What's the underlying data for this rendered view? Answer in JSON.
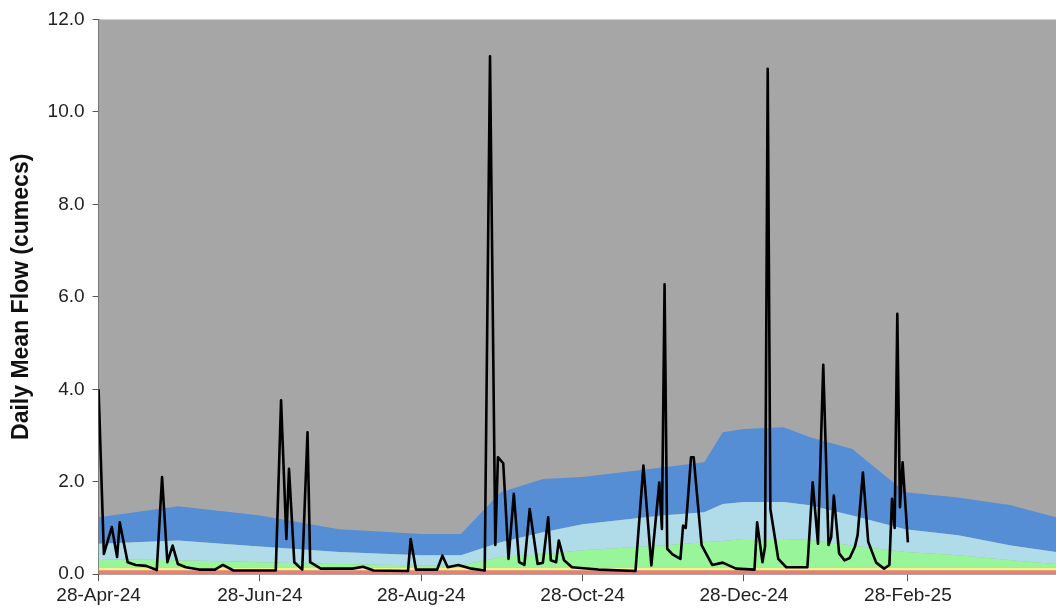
{
  "chart_data": {
    "type": "area",
    "ylabel": "Daily Mean Flow (cumecs)",
    "stacked": true,
    "xlim": [
      "2024-04-28",
      "2025-04-25"
    ],
    "xticks": [
      {
        "value": "2024-04-28",
        "label": "28-Apr-24"
      },
      {
        "value": "2024-06-28",
        "label": "28-Jun-24"
      },
      {
        "value": "2024-08-28",
        "label": "28-Aug-24"
      },
      {
        "value": "2024-10-28",
        "label": "28-Oct-24"
      },
      {
        "value": "2024-12-28",
        "label": "28-Dec-24"
      },
      {
        "value": "2025-02-28",
        "label": "28-Feb-25"
      }
    ],
    "ylim": [
      0,
      12
    ],
    "yticks": [
      {
        "value": 0,
        "label": "0.0"
      },
      {
        "value": 2,
        "label": "2.0"
      },
      {
        "value": 4,
        "label": "4.0"
      },
      {
        "value": 6,
        "label": "6.0"
      },
      {
        "value": 8,
        "label": "8.0"
      },
      {
        "value": 10,
        "label": "10.0"
      },
      {
        "value": 12,
        "label": "12.0"
      }
    ],
    "bands": [
      {
        "axis": "y",
        "from": 0,
        "to": 12,
        "color": "#a6a6a6"
      }
    ],
    "x": [
      "2024-04-28",
      "2024-05-28",
      "2024-06-28",
      "2024-07-28",
      "2024-08-28",
      "2024-09-12",
      "2024-09-27",
      "2024-10-13",
      "2024-10-28",
      "2024-11-27",
      "2024-12-13",
      "2024-12-20",
      "2024-12-28",
      "2025-01-12",
      "2025-01-22",
      "2025-02-07",
      "2025-02-27",
      "2025-03-19",
      "2025-04-08",
      "2025-04-25"
    ],
    "series": [
      {
        "color": "#f07b72",
        "values": [
          0.08,
          0.08,
          0.08,
          0.08,
          0.08,
          0.08,
          0.08,
          0.08,
          0.08,
          0.08,
          0.08,
          0.08,
          0.08,
          0.08,
          0.08,
          0.08,
          0.08,
          0.08,
          0.08,
          0.08
        ]
      },
      {
        "color": "#f8f08a",
        "values": [
          0.06,
          0.06,
          0.06,
          0.06,
          0.06,
          0.06,
          0.06,
          0.06,
          0.06,
          0.06,
          0.06,
          0.06,
          0.06,
          0.06,
          0.06,
          0.06,
          0.06,
          0.06,
          0.06,
          0.06
        ]
      },
      {
        "color": "#99f59a",
        "values": [
          0.19,
          0.16,
          0.12,
          0.08,
          0.05,
          0.05,
          0.23,
          0.29,
          0.38,
          0.48,
          0.55,
          0.58,
          0.62,
          0.62,
          0.6,
          0.48,
          0.34,
          0.27,
          0.16,
          0.08
        ]
      },
      {
        "color": "#b0dcea",
        "values": [
          0.33,
          0.43,
          0.34,
          0.26,
          0.22,
          0.22,
          0.32,
          0.48,
          0.56,
          0.65,
          0.65,
          0.8,
          0.8,
          0.8,
          0.75,
          0.65,
          0.49,
          0.43,
          0.32,
          0.26
        ]
      },
      {
        "color": "#558ed5",
        "values": [
          0.57,
          0.74,
          0.67,
          0.49,
          0.46,
          0.46,
          1.08,
          1.15,
          1.02,
          1.04,
          1.08,
          1.55,
          1.58,
          1.62,
          1.47,
          1.44,
          0.8,
          0.82,
          0.87,
          0.75
        ]
      },
      {
        "type": "line",
        "color": "#000000",
        "x": [
          "2024-04-28",
          "2024-04-30",
          "2024-05-03",
          "2024-05-05",
          "2024-05-06",
          "2024-05-09",
          "2024-05-12",
          "2024-05-16",
          "2024-05-20",
          "2024-05-22",
          "2024-05-24",
          "2024-05-26",
          "2024-05-28",
          "2024-05-31",
          "2024-06-05",
          "2024-06-11",
          "2024-06-14",
          "2024-06-18",
          "2024-07-04",
          "2024-07-06",
          "2024-07-08",
          "2024-07-09",
          "2024-07-11",
          "2024-07-14",
          "2024-07-16",
          "2024-07-17",
          "2024-07-21",
          "2024-08-02",
          "2024-08-06",
          "2024-08-10",
          "2024-08-23",
          "2024-08-24",
          "2024-08-26",
          "2024-09-03",
          "2024-09-05",
          "2024-09-07",
          "2024-09-11",
          "2024-09-16",
          "2024-09-21",
          "2024-09-23",
          "2024-09-25",
          "2024-09-26",
          "2024-09-28",
          "2024-09-30",
          "2024-10-02",
          "2024-10-04",
          "2024-10-06",
          "2024-10-08",
          "2024-10-11",
          "2024-10-13",
          "2024-10-15",
          "2024-10-16",
          "2024-10-18",
          "2024-10-19",
          "2024-10-21",
          "2024-10-24",
          "2024-11-03",
          "2024-11-17",
          "2024-11-20",
          "2024-11-23",
          "2024-11-26",
          "2024-11-27",
          "2024-11-28",
          "2024-11-29",
          "2024-12-01",
          "2024-12-04",
          "2024-12-05",
          "2024-12-06",
          "2024-12-08",
          "2024-12-09",
          "2024-12-12",
          "2024-12-16",
          "2024-12-20",
          "2024-12-25",
          "2025-01-01",
          "2025-01-02",
          "2025-01-04",
          "2025-01-05",
          "2025-01-06",
          "2025-01-07",
          "2025-01-10",
          "2025-01-13",
          "2025-01-21",
          "2025-01-23",
          "2025-01-25",
          "2025-01-27",
          "2025-01-29",
          "2025-01-30",
          "2025-01-31",
          "2025-02-02",
          "2025-02-04",
          "2025-02-06",
          "2025-02-08",
          "2025-02-09",
          "2025-02-11",
          "2025-02-13",
          "2025-02-16",
          "2025-02-19",
          "2025-02-21",
          "2025-02-22",
          "2025-02-23",
          "2025-02-24",
          "2025-02-25",
          "2025-02-26",
          "2025-02-28"
        ],
        "values": [
          4.0,
          0.44,
          1.02,
          0.37,
          1.12,
          0.26,
          0.2,
          0.18,
          0.09,
          2.1,
          0.26,
          0.62,
          0.22,
          0.15,
          0.1,
          0.1,
          0.2,
          0.08,
          0.08,
          3.76,
          0.76,
          2.28,
          0.26,
          0.1,
          3.07,
          0.26,
          0.12,
          0.12,
          0.16,
          0.08,
          0.07,
          0.76,
          0.1,
          0.1,
          0.4,
          0.15,
          0.2,
          0.12,
          0.08,
          11.2,
          0.63,
          2.53,
          2.4,
          0.33,
          1.74,
          0.26,
          0.2,
          1.41,
          0.22,
          0.25,
          1.23,
          0.3,
          0.26,
          0.73,
          0.3,
          0.15,
          0.1,
          0.07,
          2.35,
          0.19,
          1.98,
          0.98,
          6.27,
          0.55,
          0.43,
          0.33,
          1.05,
          1.0,
          2.53,
          2.53,
          0.63,
          0.2,
          0.25,
          0.12,
          0.1,
          1.12,
          0.26,
          0.6,
          10.93,
          1.41,
          0.33,
          0.15,
          0.15,
          1.99,
          0.66,
          4.53,
          0.63,
          0.8,
          1.7,
          0.45,
          0.3,
          0.35,
          0.6,
          0.85,
          2.2,
          0.7,
          0.25,
          0.12,
          0.2,
          1.63,
          1.0,
          5.63,
          1.45,
          2.42,
          0.69
        ]
      }
    ]
  }
}
